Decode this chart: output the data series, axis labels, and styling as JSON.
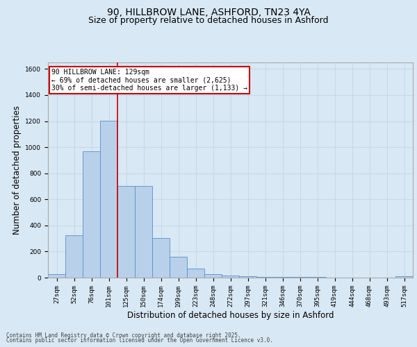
{
  "title_line1": "90, HILLBROW LANE, ASHFORD, TN23 4YA",
  "title_line2": "Size of property relative to detached houses in Ashford",
  "xlabel": "Distribution of detached houses by size in Ashford",
  "ylabel": "Number of detached properties",
  "categories": [
    "27sqm",
    "52sqm",
    "76sqm",
    "101sqm",
    "125sqm",
    "150sqm",
    "174sqm",
    "199sqm",
    "223sqm",
    "248sqm",
    "272sqm",
    "297sqm",
    "321sqm",
    "346sqm",
    "370sqm",
    "395sqm",
    "419sqm",
    "444sqm",
    "468sqm",
    "493sqm",
    "517sqm"
  ],
  "values": [
    25,
    325,
    970,
    1205,
    700,
    700,
    305,
    160,
    70,
    25,
    15,
    10,
    5,
    3,
    3,
    5,
    2,
    1,
    1,
    1,
    10
  ],
  "bar_color": "#b8d0ea",
  "bar_edge_color": "#5b8fc9",
  "red_line_index": 3.5,
  "annotation_text": "90 HILLBROW LANE: 129sqm\n← 69% of detached houses are smaller (2,625)\n30% of semi-detached houses are larger (1,133) →",
  "annotation_box_color": "#ffffff",
  "annotation_box_edge_color": "#cc0000",
  "red_line_color": "#cc0000",
  "ylim": [
    0,
    1650
  ],
  "yticks": [
    0,
    200,
    400,
    600,
    800,
    1000,
    1200,
    1400,
    1600
  ],
  "grid_color": "#c8d8e8",
  "bg_color": "#d8e8f4",
  "footer_line1": "Contains HM Land Registry data © Crown copyright and database right 2025.",
  "footer_line2": "Contains public sector information licensed under the Open Government Licence v3.0.",
  "title_fontsize": 10,
  "subtitle_fontsize": 9,
  "tick_fontsize": 6.5,
  "label_fontsize": 8.5,
  "footer_fontsize": 5.5
}
